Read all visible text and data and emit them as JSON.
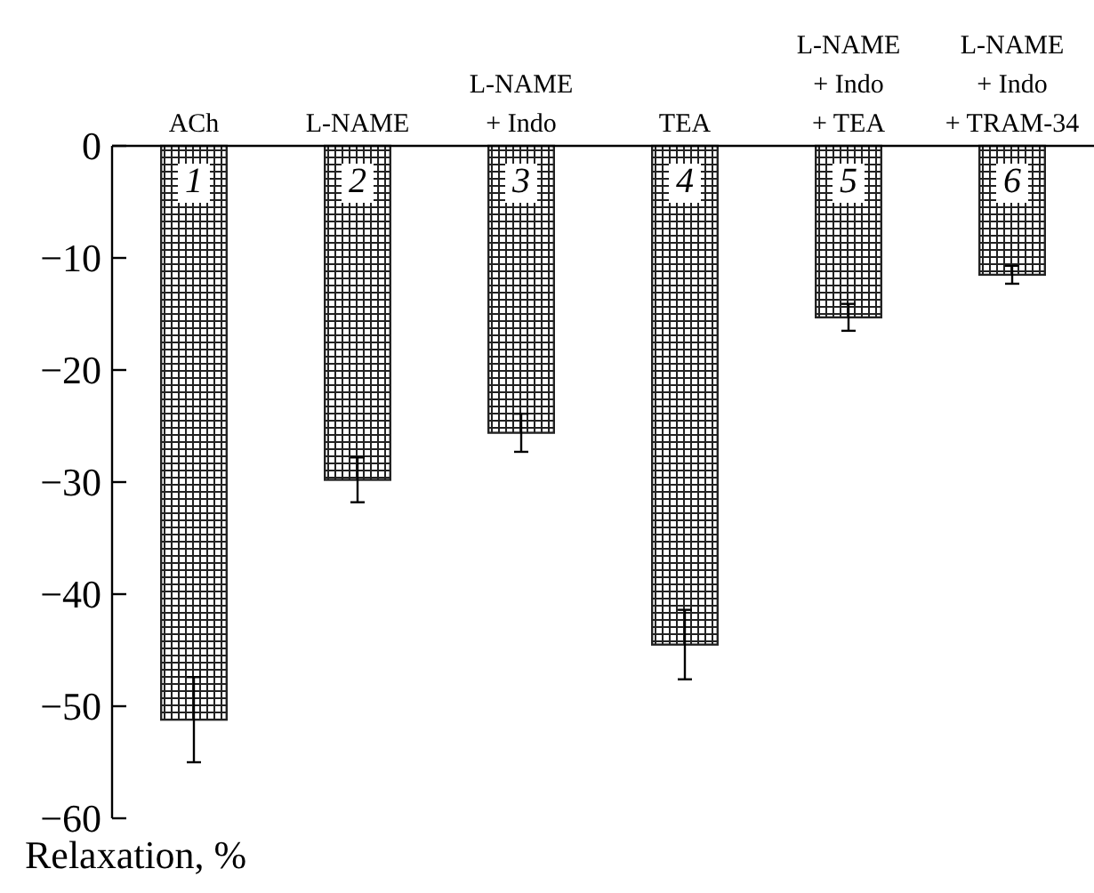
{
  "chart_data": {
    "type": "bar",
    "ylabel": "Relaxation, %",
    "categories": [
      "ACh",
      "L-NAME",
      "L-NAME\n+ Indo",
      "TEA",
      "L-NAME\n+ Indo\n+ TEA",
      "L-NAME\n+ Indo\n+ TRAM-34"
    ],
    "values": [
      -51.2,
      -29.8,
      -25.6,
      -44.5,
      -15.3,
      -11.5
    ],
    "errors": [
      3.8,
      2.0,
      1.7,
      3.1,
      1.2,
      0.8
    ],
    "color": "#222222",
    "ylim": [
      -60,
      0
    ],
    "yticks": [
      {
        "value": 0,
        "label": "0"
      },
      {
        "value": -10,
        "label": "−10"
      },
      {
        "value": -20,
        "label": "−20"
      },
      {
        "value": -30,
        "label": "−30"
      },
      {
        "value": -40,
        "label": "−40"
      },
      {
        "value": -50,
        "label": "−50"
      },
      {
        "value": -60,
        "label": "−60"
      }
    ],
    "grid": false,
    "annotations": [
      "1",
      "2",
      "3",
      "4",
      "5",
      "6"
    ]
  }
}
